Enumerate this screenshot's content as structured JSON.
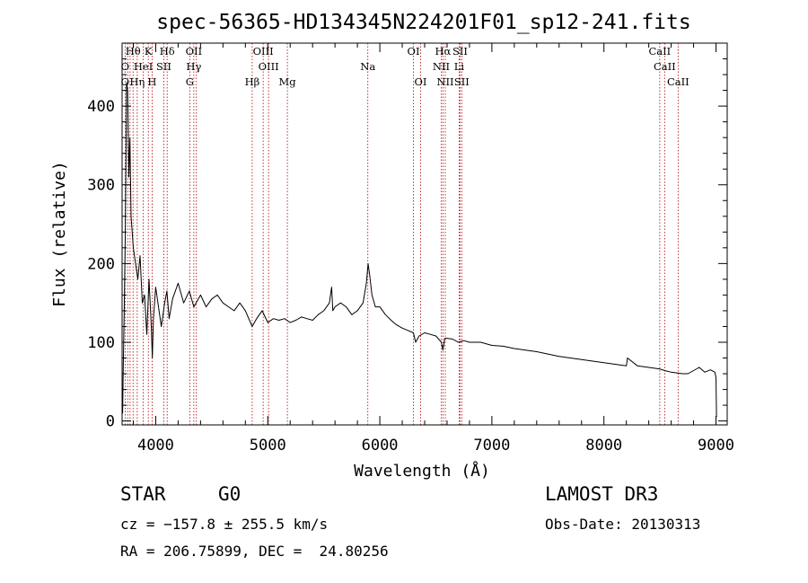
{
  "chart_data": {
    "type": "line",
    "title": "spec-56365-HD134345N224201F01_sp12-241.fits",
    "xlabel": "Wavelength (Å)",
    "ylabel": "Flux (relative)",
    "xlim": [
      3700,
      9100
    ],
    "ylim": [
      -5,
      480
    ],
    "xticks": [
      4000,
      5000,
      6000,
      7000,
      8000,
      9000
    ],
    "xtick_labels": [
      "4000",
      "5000",
      "6000",
      "7000",
      "8000",
      "9000"
    ],
    "yticks": [
      0,
      100,
      200,
      300,
      400
    ],
    "ytick_labels": [
      "0",
      "100",
      "200",
      "300",
      "400"
    ],
    "series": [
      {
        "name": "spectrum",
        "x": [
          3700,
          3705,
          3710,
          3720,
          3730,
          3740,
          3750,
          3760,
          3770,
          3780,
          3800,
          3820,
          3840,
          3860,
          3880,
          3900,
          3920,
          3940,
          3960,
          3970,
          3980,
          4000,
          4020,
          4050,
          4080,
          4100,
          4120,
          4150,
          4200,
          4250,
          4300,
          4340,
          4360,
          4400,
          4450,
          4500,
          4550,
          4600,
          4650,
          4700,
          4750,
          4800,
          4861,
          4900,
          4950,
          5000,
          5050,
          5100,
          5150,
          5200,
          5250,
          5300,
          5350,
          5400,
          5450,
          5500,
          5550,
          5570,
          5580,
          5600,
          5650,
          5700,
          5750,
          5800,
          5850,
          5880,
          5895,
          5910,
          5930,
          5960,
          6000,
          6050,
          6100,
          6150,
          6200,
          6250,
          6300,
          6320,
          6350,
          6400,
          6450,
          6500,
          6550,
          6563,
          6580,
          6600,
          6650,
          6700,
          6750,
          6800,
          6900,
          7000,
          7100,
          7200,
          7300,
          7400,
          7500,
          7600,
          7700,
          7800,
          7900,
          8000,
          8100,
          8200,
          8210,
          8300,
          8400,
          8500,
          8542,
          8600,
          8700,
          8750,
          8800,
          8850,
          8900,
          8950,
          8990,
          9000,
          9005
        ],
        "y": [
          40,
          10,
          60,
          150,
          250,
          430,
          420,
          310,
          360,
          260,
          220,
          200,
          180,
          210,
          150,
          160,
          110,
          180,
          120,
          80,
          130,
          170,
          150,
          120,
          150,
          165,
          130,
          155,
          175,
          150,
          165,
          145,
          150,
          160,
          145,
          155,
          160,
          150,
          145,
          140,
          150,
          140,
          120,
          130,
          140,
          125,
          130,
          128,
          130,
          125,
          128,
          132,
          130,
          128,
          135,
          140,
          150,
          170,
          140,
          145,
          150,
          145,
          135,
          140,
          150,
          175,
          200,
          185,
          160,
          145,
          145,
          135,
          128,
          122,
          118,
          115,
          112,
          100,
          108,
          112,
          110,
          108,
          100,
          90,
          105,
          105,
          104,
          100,
          102,
          100,
          100,
          96,
          95,
          92,
          90,
          88,
          85,
          82,
          80,
          78,
          76,
          74,
          72,
          70,
          80,
          70,
          68,
          66,
          64,
          62,
          60,
          60,
          64,
          68,
          62,
          65,
          62,
          55,
          5
        ]
      }
    ],
    "lines": [
      {
        "label": "Hθ",
        "wavelength": 3798,
        "row": 0
      },
      {
        "label": "K",
        "wavelength": 3934,
        "row": 0
      },
      {
        "label": "Hδ",
        "wavelength": 4102,
        "row": 0
      },
      {
        "label": "OII",
        "wavelength": 4340,
        "row": 0
      },
      {
        "label": "OIII",
        "wavelength": 4959,
        "row": 0
      },
      {
        "label": "OI",
        "wavelength": 6300,
        "row": 0
      },
      {
        "label": "Hα",
        "wavelength": 6563,
        "row": 0
      },
      {
        "label": "SII",
        "wavelength": 6716,
        "row": 0
      },
      {
        "label": "CaII",
        "wavelength": 8498,
        "row": 0
      },
      {
        "label": "O",
        "wavelength": 3727,
        "row": 1
      },
      {
        "label": "HeI",
        "wavelength": 3889,
        "row": 1
      },
      {
        "label": "SII",
        "wavelength": 4072,
        "row": 1
      },
      {
        "label": "Hγ",
        "wavelength": 4340,
        "row": 1
      },
      {
        "label": "OIII",
        "wavelength": 5007,
        "row": 1
      },
      {
        "label": "Na",
        "wavelength": 5893,
        "row": 1
      },
      {
        "label": "NII",
        "wavelength": 6548,
        "row": 1
      },
      {
        "label": "Li",
        "wavelength": 6708,
        "row": 1
      },
      {
        "label": "CaII",
        "wavelength": 8542,
        "row": 1
      },
      {
        "label": "O",
        "wavelength": 3727,
        "row": 2
      },
      {
        "label": "Hη",
        "wavelength": 3835,
        "row": 2
      },
      {
        "label": "H",
        "wavelength": 3968,
        "row": 2
      },
      {
        "label": "G",
        "wavelength": 4304,
        "row": 2
      },
      {
        "label": "Hβ",
        "wavelength": 4861,
        "row": 2
      },
      {
        "label": "Mg",
        "wavelength": 5175,
        "row": 2
      },
      {
        "label": "OI",
        "wavelength": 6364,
        "row": 2
      },
      {
        "label": "NII",
        "wavelength": 6584,
        "row": 2
      },
      {
        "label": "SII",
        "wavelength": 6731,
        "row": 2
      },
      {
        "label": "CaII",
        "wavelength": 8662,
        "row": 2
      }
    ],
    "line_marker_wavelengths": [
      3727,
      3750,
      3771,
      3798,
      3835,
      3889,
      3934,
      3968,
      4072,
      4102,
      4304,
      4340,
      4363,
      4861,
      4959,
      5007,
      5175,
      5893,
      6300,
      6364,
      6548,
      6563,
      6584,
      6708,
      6716,
      6731,
      8498,
      8542,
      8662
    ]
  },
  "info": {
    "object_class": "STAR",
    "subclass": "G0",
    "survey": "LAMOST DR3",
    "cz": "cz = −157.8 ± 255.5 km/s",
    "obs_date": "Obs-Date: 20130313",
    "coords": "RA = 206.75899, DEC =  24.80256"
  }
}
